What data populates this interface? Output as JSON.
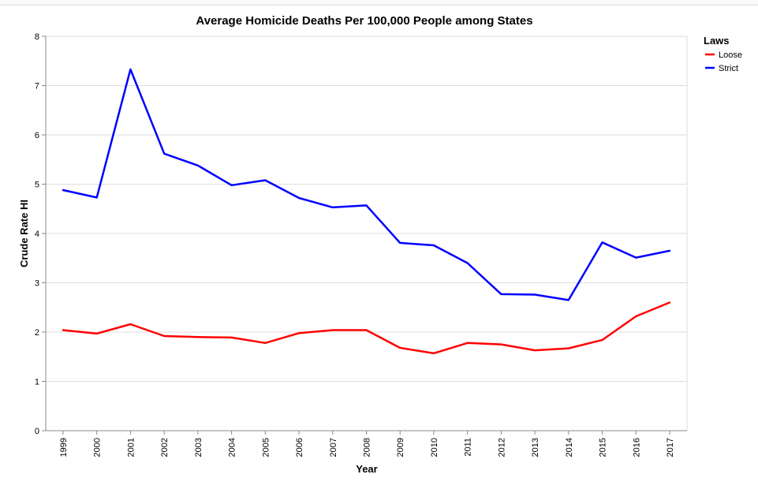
{
  "chart_data": {
    "type": "line",
    "title": "Average Homicide Deaths Per 100,000 People among States",
    "xlabel": "Year",
    "ylabel": "Crude Rate HI",
    "ylim": [
      0,
      8
    ],
    "yticks": [
      "0",
      "1",
      "2",
      "3",
      "4",
      "5",
      "6",
      "7",
      "8"
    ],
    "categories": [
      "1999",
      "2000",
      "2001",
      "2002",
      "2003",
      "2004",
      "2005",
      "2006",
      "2007",
      "2008",
      "2009",
      "2010",
      "2011",
      "2012",
      "2013",
      "2014",
      "2015",
      "2016",
      "2017"
    ],
    "grid": true,
    "legend": {
      "title": "Laws",
      "position": "top-right"
    },
    "series": [
      {
        "name": "Loose",
        "color": "#ff0000",
        "values": [
          2.04,
          1.97,
          2.16,
          1.92,
          1.9,
          1.89,
          1.78,
          1.98,
          2.04,
          2.04,
          1.68,
          1.57,
          1.78,
          1.75,
          1.63,
          1.67,
          1.84,
          2.32,
          2.6
        ]
      },
      {
        "name": "Strict",
        "color": "#0000ff",
        "values": [
          4.88,
          4.73,
          7.33,
          5.62,
          5.38,
          4.98,
          5.08,
          4.72,
          4.53,
          4.57,
          3.81,
          3.76,
          3.4,
          2.77,
          2.76,
          2.65,
          3.82,
          3.51,
          3.65
        ]
      }
    ]
  }
}
